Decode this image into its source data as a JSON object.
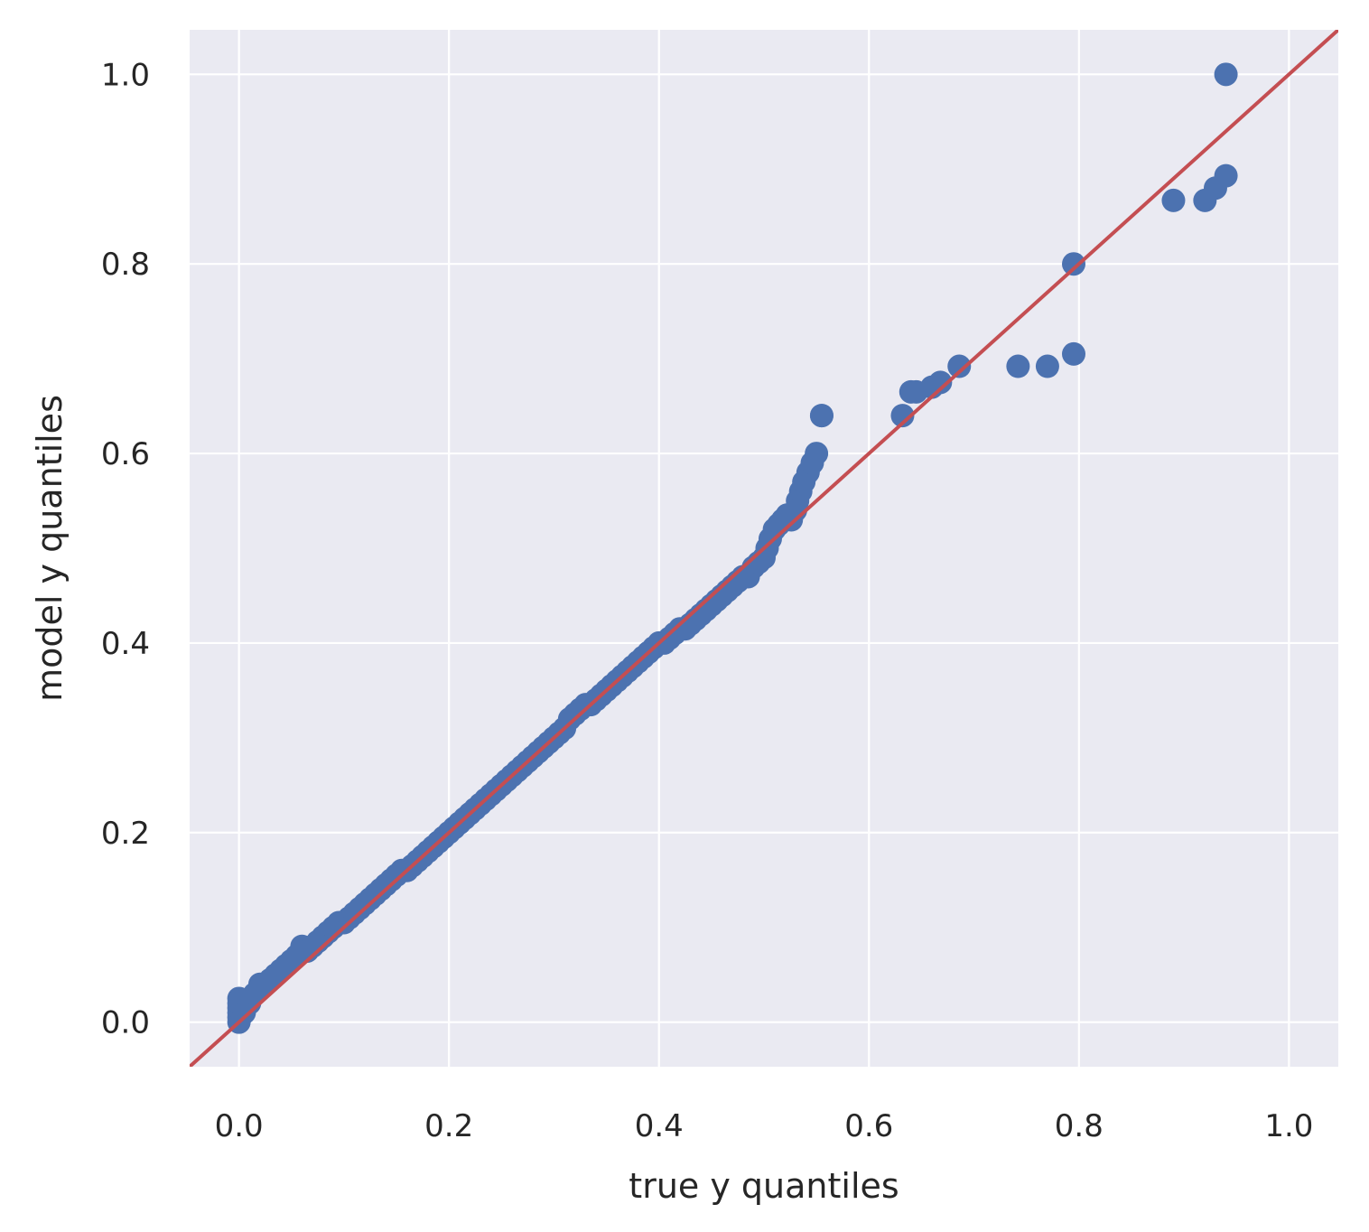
{
  "chart_data": {
    "type": "scatter",
    "title": "",
    "xlabel": "true y quantiles",
    "ylabel": "model y quantiles",
    "xlim": [
      -0.047,
      1.047
    ],
    "ylim": [
      -0.047,
      1.047
    ],
    "xticks": [
      0.0,
      0.2,
      0.4,
      0.6,
      0.8,
      1.0
    ],
    "yticks": [
      0.0,
      0.2,
      0.4,
      0.6,
      0.8,
      1.0
    ],
    "xtick_labels": [
      "0.0",
      "0.2",
      "0.4",
      "0.6",
      "0.8",
      "1.0"
    ],
    "ytick_labels": [
      "0.0",
      "0.2",
      "0.4",
      "0.6",
      "0.8",
      "1.0"
    ],
    "grid": true,
    "colors": {
      "background": "#eaeaf2",
      "grid": "#ffffff",
      "points": "#4c72b0",
      "line": "#c44e52",
      "text": "#262626"
    },
    "reference_line": {
      "x": [
        -0.047,
        1.047
      ],
      "y": [
        -0.047,
        1.047
      ]
    },
    "series": [
      {
        "x": [
          0.0,
          0.0,
          0.0,
          0.0,
          0.0,
          0.0,
          0.005,
          0.01,
          0.015,
          0.02,
          0.025,
          0.03,
          0.035,
          0.04,
          0.045,
          0.05,
          0.055,
          0.06,
          0.065,
          0.07,
          0.075,
          0.08,
          0.085,
          0.09,
          0.095,
          0.1,
          0.105,
          0.11,
          0.115,
          0.12,
          0.125,
          0.13,
          0.135,
          0.14,
          0.145,
          0.15,
          0.155,
          0.16,
          0.165,
          0.17,
          0.175,
          0.18,
          0.185,
          0.19,
          0.195,
          0.2,
          0.205,
          0.21,
          0.215,
          0.22,
          0.225,
          0.23,
          0.235,
          0.24,
          0.245,
          0.25,
          0.255,
          0.26,
          0.265,
          0.27,
          0.275,
          0.28,
          0.285,
          0.29,
          0.295,
          0.3,
          0.305,
          0.31,
          0.315,
          0.32,
          0.325,
          0.33,
          0.335,
          0.34,
          0.345,
          0.35,
          0.355,
          0.36,
          0.365,
          0.37,
          0.375,
          0.38,
          0.385,
          0.39,
          0.395,
          0.4,
          0.405,
          0.41,
          0.415,
          0.42,
          0.425,
          0.43,
          0.435,
          0.44,
          0.445,
          0.45,
          0.455,
          0.46,
          0.465,
          0.47,
          0.475,
          0.48,
          0.485,
          0.49,
          0.495,
          0.5,
          0.503,
          0.506,
          0.51,
          0.514,
          0.518,
          0.522,
          0.526,
          0.53,
          0.532,
          0.535,
          0.538,
          0.542,
          0.546,
          0.55,
          0.555,
          0.555,
          0.632,
          0.64,
          0.645,
          0.66,
          0.668,
          0.686,
          0.742,
          0.77,
          0.795,
          0.795,
          0.89,
          0.92,
          0.93,
          0.94,
          0.94
        ],
        "y": [
          0.0,
          0.005,
          0.01,
          0.015,
          0.02,
          0.025,
          0.01,
          0.02,
          0.03,
          0.04,
          0.04,
          0.045,
          0.05,
          0.055,
          0.06,
          0.065,
          0.07,
          0.08,
          0.075,
          0.08,
          0.085,
          0.09,
          0.095,
          0.1,
          0.105,
          0.105,
          0.11,
          0.115,
          0.12,
          0.125,
          0.13,
          0.135,
          0.14,
          0.145,
          0.15,
          0.155,
          0.16,
          0.16,
          0.165,
          0.17,
          0.175,
          0.18,
          0.185,
          0.19,
          0.195,
          0.2,
          0.205,
          0.21,
          0.215,
          0.22,
          0.225,
          0.23,
          0.235,
          0.24,
          0.245,
          0.25,
          0.255,
          0.26,
          0.265,
          0.27,
          0.275,
          0.28,
          0.285,
          0.29,
          0.295,
          0.3,
          0.305,
          0.31,
          0.32,
          0.325,
          0.33,
          0.335,
          0.335,
          0.34,
          0.345,
          0.35,
          0.355,
          0.36,
          0.365,
          0.37,
          0.375,
          0.38,
          0.385,
          0.39,
          0.395,
          0.4,
          0.4,
          0.405,
          0.41,
          0.415,
          0.415,
          0.42,
          0.425,
          0.43,
          0.435,
          0.44,
          0.445,
          0.45,
          0.455,
          0.46,
          0.465,
          0.47,
          0.47,
          0.48,
          0.485,
          0.49,
          0.5,
          0.51,
          0.52,
          0.525,
          0.53,
          0.535,
          0.53,
          0.54,
          0.55,
          0.56,
          0.57,
          0.58,
          0.59,
          0.6,
          0.64,
          0.64,
          0.64,
          0.665,
          0.665,
          0.67,
          0.675,
          0.692,
          0.692,
          0.692,
          0.705,
          0.8,
          0.867,
          0.867,
          0.88,
          0.893,
          1.0
        ]
      }
    ]
  }
}
